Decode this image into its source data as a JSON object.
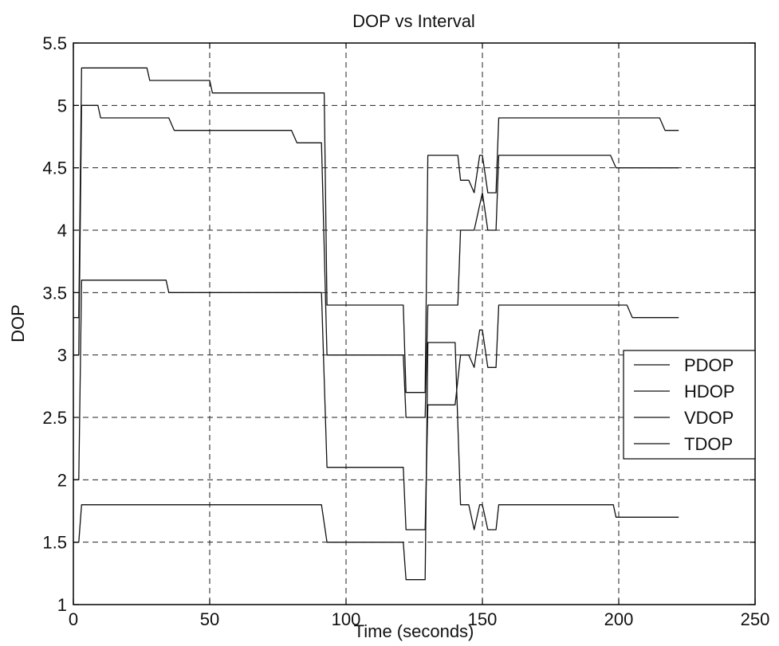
{
  "chart_data": {
    "type": "line",
    "title": "DOP vs Interval",
    "xlabel": "Time (seconds)",
    "ylabel": "DOP",
    "xlim": [
      0,
      250
    ],
    "ylim": [
      1,
      5.5
    ],
    "xticks": [
      0,
      50,
      100,
      150,
      200,
      250
    ],
    "yticks": [
      1,
      1.5,
      2,
      2.5,
      3,
      3.5,
      4,
      4.5,
      5,
      5.5
    ],
    "grid": true,
    "legend_position": "right",
    "colors": {
      "line": "#111111",
      "grid": "#222222",
      "axes": "#000000"
    },
    "series": [
      {
        "name": "PDOP",
        "points": [
          [
            0,
            3.3
          ],
          [
            2,
            3.3
          ],
          [
            3,
            5.3
          ],
          [
            27,
            5.3
          ],
          [
            28,
            5.2
          ],
          [
            50,
            5.2
          ],
          [
            51,
            5.1
          ],
          [
            92,
            5.1
          ],
          [
            93,
            3.4
          ],
          [
            121,
            3.4
          ],
          [
            122,
            2.7
          ],
          [
            129,
            2.7
          ],
          [
            130,
            4.6
          ],
          [
            141,
            4.6
          ],
          [
            142,
            4.4
          ],
          [
            145,
            4.4
          ],
          [
            147,
            4.3
          ],
          [
            149,
            4.6
          ],
          [
            150,
            4.6
          ],
          [
            152,
            4.3
          ],
          [
            155,
            4.3
          ],
          [
            156,
            4.9
          ],
          [
            215,
            4.9
          ],
          [
            217,
            4.8
          ],
          [
            222,
            4.8
          ]
        ]
      },
      {
        "name": "HDOP",
        "points": [
          [
            0,
            1.5
          ],
          [
            2,
            1.5
          ],
          [
            3,
            1.8
          ],
          [
            91,
            1.8
          ],
          [
            93,
            1.5
          ],
          [
            121,
            1.5
          ],
          [
            122,
            1.2
          ],
          [
            129,
            1.2
          ],
          [
            130,
            3.1
          ],
          [
            140,
            3.1
          ],
          [
            142,
            1.8
          ],
          [
            145,
            1.8
          ],
          [
            147,
            1.6
          ],
          [
            149,
            1.8
          ],
          [
            150,
            1.8
          ],
          [
            152,
            1.6
          ],
          [
            155,
            1.6
          ],
          [
            156,
            1.8
          ],
          [
            198,
            1.8
          ],
          [
            199,
            1.7
          ],
          [
            222,
            1.7
          ]
        ]
      },
      {
        "name": "VDOP",
        "points": [
          [
            0,
            3.0
          ],
          [
            2,
            3.0
          ],
          [
            3,
            5.0
          ],
          [
            9,
            5.0
          ],
          [
            10,
            4.9
          ],
          [
            35,
            4.9
          ],
          [
            37,
            4.8
          ],
          [
            80,
            4.8
          ],
          [
            82,
            4.7
          ],
          [
            91,
            4.7
          ],
          [
            93,
            3.0
          ],
          [
            121,
            3.0
          ],
          [
            122,
            2.5
          ],
          [
            129,
            2.5
          ],
          [
            130,
            3.4
          ],
          [
            141,
            3.4
          ],
          [
            142,
            4.0
          ],
          [
            147,
            4.0
          ],
          [
            150,
            4.3
          ],
          [
            152,
            4.0
          ],
          [
            155,
            4.0
          ],
          [
            156,
            4.6
          ],
          [
            197,
            4.6
          ],
          [
            199,
            4.5
          ],
          [
            222,
            4.5
          ]
        ]
      },
      {
        "name": "TDOP",
        "points": [
          [
            0,
            2.0
          ],
          [
            2,
            2.0
          ],
          [
            3,
            3.6
          ],
          [
            34,
            3.6
          ],
          [
            35,
            3.5
          ],
          [
            91,
            3.5
          ],
          [
            93,
            2.1
          ],
          [
            121,
            2.1
          ],
          [
            122,
            1.6
          ],
          [
            129,
            1.6
          ],
          [
            130,
            2.6
          ],
          [
            140,
            2.6
          ],
          [
            142,
            3.0
          ],
          [
            145,
            3.0
          ],
          [
            147,
            2.9
          ],
          [
            149,
            3.2
          ],
          [
            150,
            3.2
          ],
          [
            152,
            2.9
          ],
          [
            155,
            2.9
          ],
          [
            156,
            3.4
          ],
          [
            203,
            3.4
          ],
          [
            205,
            3.3
          ],
          [
            222,
            3.3
          ]
        ]
      }
    ]
  }
}
